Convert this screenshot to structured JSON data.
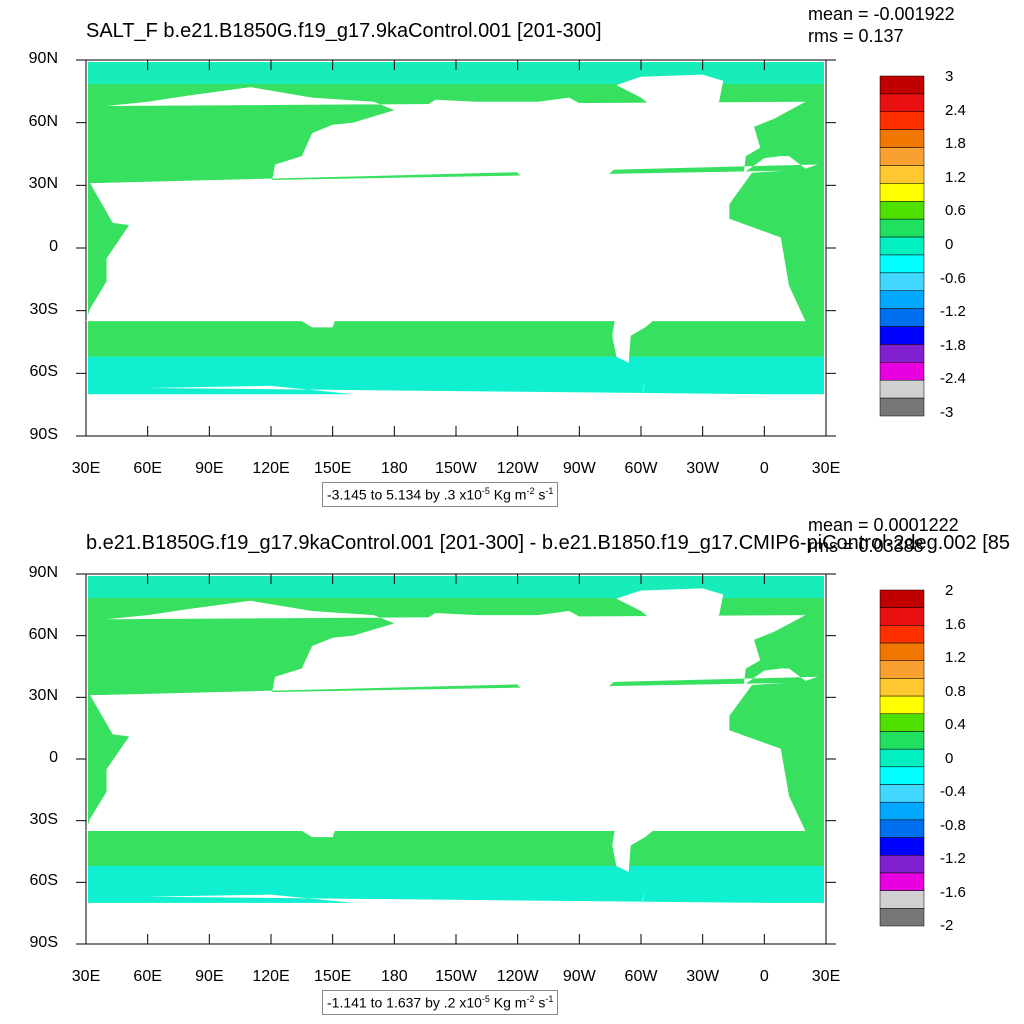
{
  "panels": [
    {
      "title": "SALT_F b.e21.B1850G.f19_g17.9kaControl.001 [201-300]",
      "mean": "mean = -0.001922",
      "rms": "rms = 0.137",
      "range_text": "-3.145 to 5.134 by .3 x10",
      "range_exp": "-5",
      "range_units": " Kg m",
      "range_exp2": "-2",
      "range_s": " s",
      "range_exp3": "-1",
      "colorbar_labels": [
        "3",
        "2.4",
        "1.8",
        "1.2",
        "0.6",
        "0",
        "-0.6",
        "-1.2",
        "-1.8",
        "-2.4",
        "-3"
      ]
    },
    {
      "title": "b.e21.B1850G.f19_g17.9kaControl.001 [201-300] - b.e21.B1850.f19_g17.CMIP6-piControl-2deg.002 [85",
      "mean": "mean = 0.0001222",
      "rms": "rms = 0.03388",
      "range_text": "-1.141 to 1.637 by .2 x10",
      "range_exp": "-5",
      "range_units": " Kg m",
      "range_exp2": "-2",
      "range_s": " s",
      "range_exp3": "-1",
      "colorbar_labels": [
        "2",
        "1.6",
        "1.2",
        "0.8",
        "0.4",
        "0",
        "-0.4",
        "-0.8",
        "-1.2",
        "-1.6",
        "-2"
      ]
    }
  ],
  "lat_labels": [
    "90N",
    "60N",
    "30N",
    "0",
    "30S",
    "60S",
    "90S"
  ],
  "lon_labels": [
    "30E",
    "60E",
    "90E",
    "120E",
    "150E",
    "180",
    "150W",
    "120W",
    "90W",
    "60W",
    "30W",
    "0",
    "30E"
  ],
  "colorbar_colors": [
    "#c00000",
    "#e81010",
    "#ff3000",
    "#f07800",
    "#f8a030",
    "#ffc830",
    "#ffff00",
    "#50e000",
    "#20e060",
    "#00f0c0",
    "#00ffff",
    "#40d8ff",
    "#00a8ff",
    "#0070f0",
    "#0000ff",
    "#8020d0",
    "#e800e0",
    "#d0d0d0",
    "#777777"
  ],
  "ocean_color": "#38e060",
  "southern_color": "#10f0d0"
}
